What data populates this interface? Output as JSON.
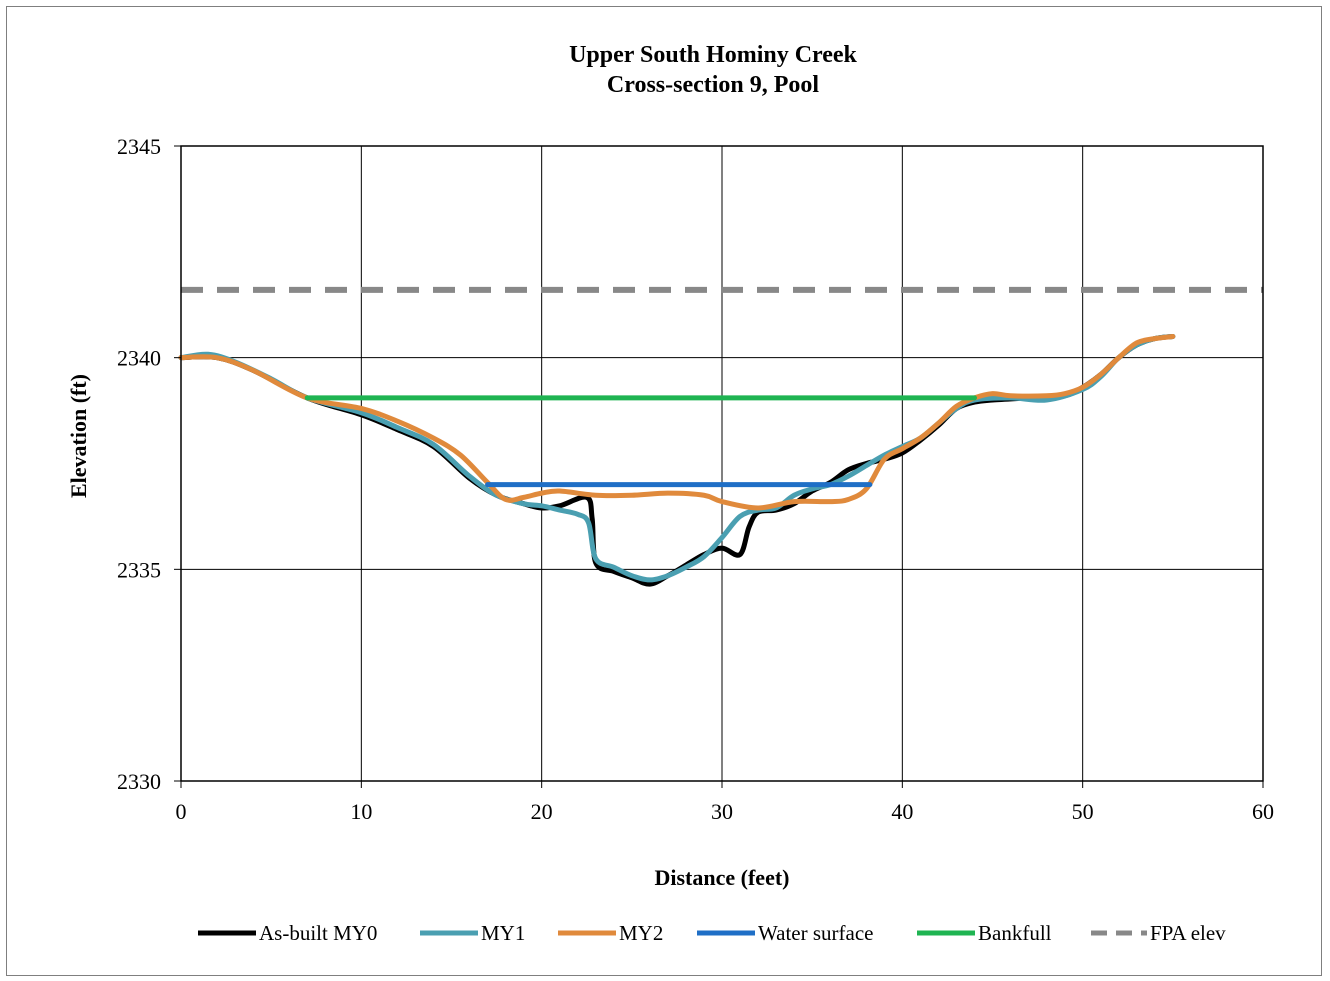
{
  "chart_data": {
    "type": "line",
    "title": "Upper South Hominy Creek",
    "subtitle": "Cross-section 9, Pool",
    "xlabel": "Distance (feet)",
    "ylabel": "Elevation (ft)",
    "xlim": [
      0,
      60
    ],
    "ylim": [
      2330,
      2345
    ],
    "xticks": [
      0,
      10,
      20,
      30,
      40,
      50,
      60
    ],
    "yticks": [
      2330,
      2335,
      2340,
      2345
    ],
    "x_tick_labels": [
      "0",
      "10",
      "20",
      "30",
      "40",
      "50",
      "60"
    ],
    "y_tick_labels": [
      "2330",
      "2335",
      "2340",
      "2345"
    ],
    "grid": true,
    "legend_position": "bottom",
    "series": [
      {
        "name": "As-built MY0",
        "color": "#000000",
        "dash": "solid",
        "points": [
          [
            0,
            2340.0
          ],
          [
            2,
            2340.0
          ],
          [
            4,
            2339.7
          ],
          [
            7,
            2339.05
          ],
          [
            10,
            2338.65
          ],
          [
            12,
            2338.3
          ],
          [
            14,
            2337.9
          ],
          [
            16,
            2337.15
          ],
          [
            17.5,
            2336.75
          ],
          [
            19,
            2336.55
          ],
          [
            20,
            2336.45
          ],
          [
            21,
            2336.5
          ],
          [
            22.5,
            2336.7
          ],
          [
            22.8,
            2336.2
          ],
          [
            23,
            2335.15
          ],
          [
            24,
            2334.95
          ],
          [
            25,
            2334.8
          ],
          [
            26,
            2334.65
          ],
          [
            27,
            2334.85
          ],
          [
            28,
            2335.1
          ],
          [
            29,
            2335.35
          ],
          [
            30,
            2335.5
          ],
          [
            31,
            2335.35
          ],
          [
            31.5,
            2336.0
          ],
          [
            32,
            2336.35
          ],
          [
            33,
            2336.4
          ],
          [
            34,
            2336.55
          ],
          [
            35,
            2336.85
          ],
          [
            36,
            2337.05
          ],
          [
            37,
            2337.35
          ],
          [
            38,
            2337.5
          ],
          [
            39,
            2337.6
          ],
          [
            40,
            2337.75
          ],
          [
            41,
            2338.05
          ],
          [
            42,
            2338.4
          ],
          [
            43,
            2338.8
          ],
          [
            44,
            2338.95
          ],
          [
            45,
            2339.0
          ],
          [
            47,
            2339.05
          ],
          [
            49,
            2339.1
          ],
          [
            50,
            2339.3
          ],
          [
            51,
            2339.6
          ],
          [
            52,
            2340.0
          ],
          [
            53,
            2340.3
          ],
          [
            54,
            2340.45
          ],
          [
            55,
            2340.5
          ]
        ]
      },
      {
        "name": "MY1",
        "color": "#4a9fb1",
        "dash": "solid",
        "points": [
          [
            0,
            2340.0
          ],
          [
            1.5,
            2340.08
          ],
          [
            3,
            2339.9
          ],
          [
            5,
            2339.5
          ],
          [
            7,
            2339.05
          ],
          [
            10,
            2338.7
          ],
          [
            12,
            2338.35
          ],
          [
            14,
            2337.95
          ],
          [
            16,
            2337.2
          ],
          [
            17.5,
            2336.75
          ],
          [
            19,
            2336.55
          ],
          [
            20,
            2336.5
          ],
          [
            21,
            2336.4
          ],
          [
            22,
            2336.3
          ],
          [
            22.6,
            2336.1
          ],
          [
            23,
            2335.25
          ],
          [
            24,
            2335.05
          ],
          [
            25,
            2334.85
          ],
          [
            26,
            2334.75
          ],
          [
            27,
            2334.85
          ],
          [
            28,
            2335.05
          ],
          [
            29,
            2335.3
          ],
          [
            30,
            2335.75
          ],
          [
            31,
            2336.25
          ],
          [
            32,
            2336.4
          ],
          [
            33,
            2336.45
          ],
          [
            34,
            2336.75
          ],
          [
            35,
            2336.9
          ],
          [
            36,
            2337.0
          ],
          [
            37,
            2337.2
          ],
          [
            38,
            2337.45
          ],
          [
            39,
            2337.7
          ],
          [
            40,
            2337.9
          ],
          [
            41,
            2338.1
          ],
          [
            42,
            2338.45
          ],
          [
            43,
            2338.8
          ],
          [
            44,
            2339.0
          ],
          [
            46,
            2339.05
          ],
          [
            48,
            2339.0
          ],
          [
            50,
            2339.25
          ],
          [
            51,
            2339.55
          ],
          [
            52,
            2340.0
          ],
          [
            53,
            2340.3
          ],
          [
            54,
            2340.45
          ],
          [
            55,
            2340.5
          ]
        ]
      },
      {
        "name": "MY2",
        "color": "#e08a3c",
        "dash": "solid",
        "points": [
          [
            0,
            2340.0
          ],
          [
            2,
            2340.0
          ],
          [
            4,
            2339.7
          ],
          [
            7,
            2339.05
          ],
          [
            10,
            2338.8
          ],
          [
            12,
            2338.5
          ],
          [
            14,
            2338.1
          ],
          [
            15.5,
            2337.7
          ],
          [
            17,
            2337.05
          ],
          [
            18,
            2336.65
          ],
          [
            19,
            2336.7
          ],
          [
            20,
            2336.8
          ],
          [
            21,
            2336.85
          ],
          [
            23,
            2336.75
          ],
          [
            25,
            2336.75
          ],
          [
            27,
            2336.8
          ],
          [
            29,
            2336.75
          ],
          [
            30,
            2336.6
          ],
          [
            32,
            2336.45
          ],
          [
            34,
            2336.6
          ],
          [
            36,
            2336.6
          ],
          [
            37,
            2336.65
          ],
          [
            38,
            2336.9
          ],
          [
            39,
            2337.6
          ],
          [
            40,
            2337.85
          ],
          [
            41,
            2338.1
          ],
          [
            42,
            2338.45
          ],
          [
            43,
            2338.85
          ],
          [
            44,
            2339.05
          ],
          [
            45,
            2339.15
          ],
          [
            46,
            2339.1
          ],
          [
            48,
            2339.1
          ],
          [
            49,
            2339.15
          ],
          [
            50,
            2339.3
          ],
          [
            51,
            2339.6
          ],
          [
            52,
            2340.0
          ],
          [
            53,
            2340.35
          ],
          [
            54,
            2340.45
          ],
          [
            55,
            2340.5
          ]
        ]
      },
      {
        "name": "Water surface",
        "color": "#1f6fc6",
        "dash": "solid",
        "points": [
          [
            17,
            2337.0
          ],
          [
            38.2,
            2337.0
          ]
        ]
      },
      {
        "name": "Bankfull",
        "color": "#1fb452",
        "dash": "solid",
        "points": [
          [
            7,
            2339.05
          ],
          [
            44,
            2339.05
          ]
        ]
      },
      {
        "name": "FPA elev",
        "color": "#888888",
        "dash": "dashed",
        "points": [
          [
            0,
            2341.6
          ],
          [
            60,
            2341.6
          ]
        ]
      }
    ]
  }
}
